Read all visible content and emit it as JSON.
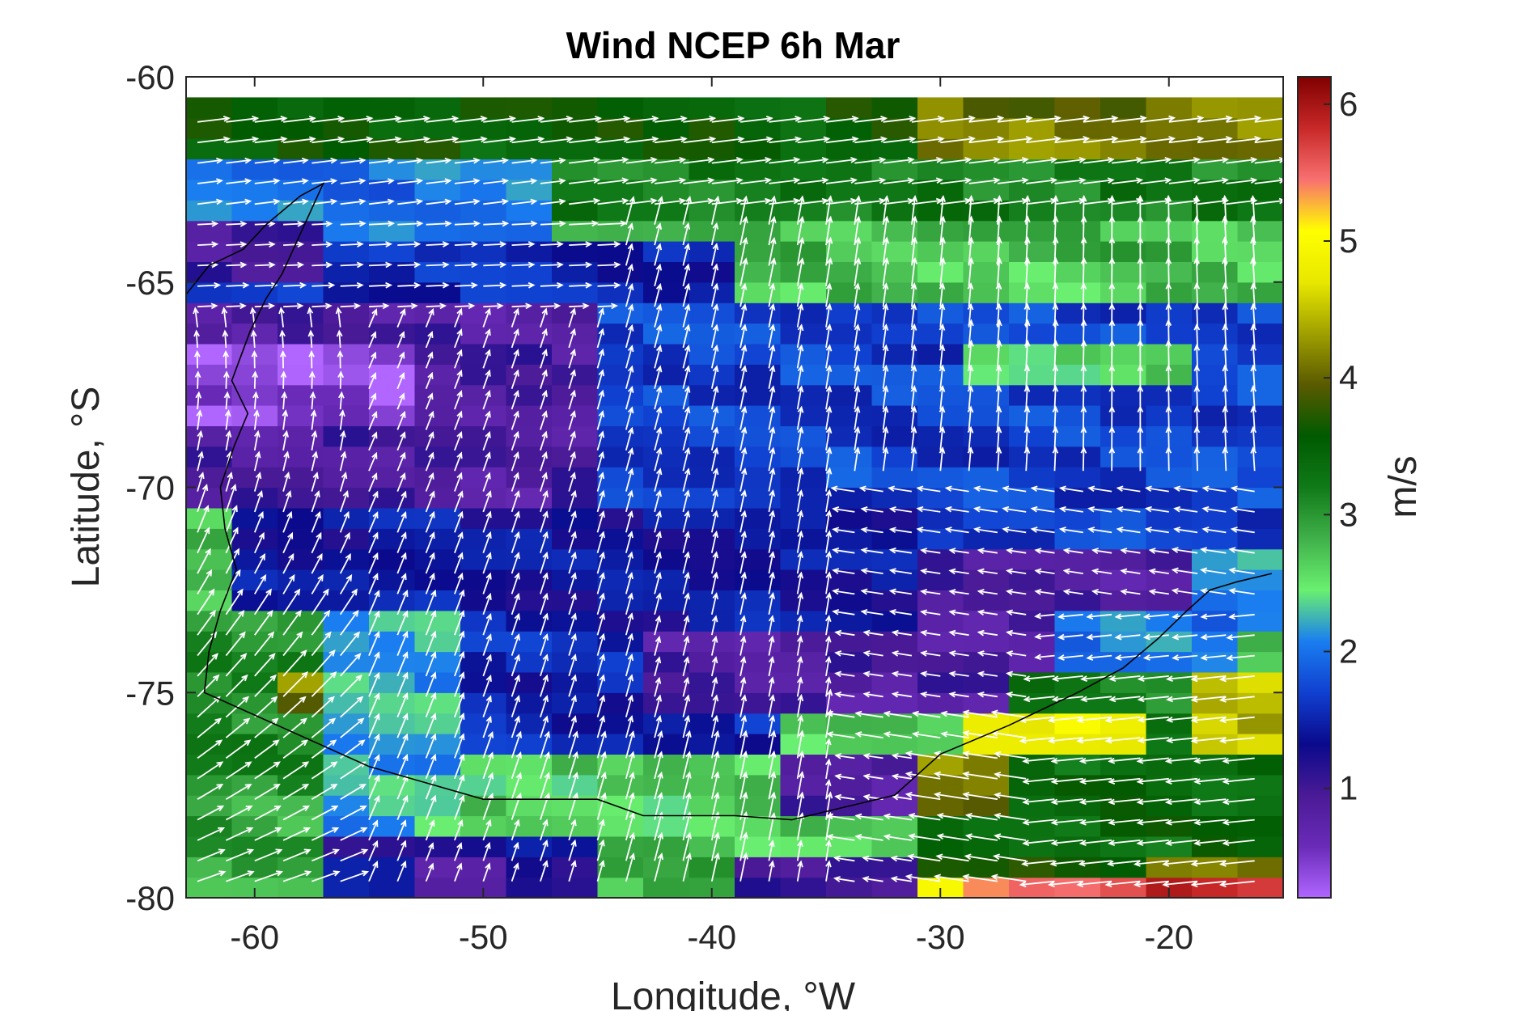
{
  "chart_data": {
    "type": "heatmap",
    "title": "Wind NCEP 6h Mar",
    "xlabel": "Longitude, °W",
    "ylabel": "Latitude, °S",
    "colorbar_label": "m/s",
    "xlim": [
      -63,
      -15
    ],
    "ylim": [
      -80,
      -60
    ],
    "xticks": [
      -60,
      -50,
      -40,
      -30,
      -20
    ],
    "xtick_labels": [
      "-60",
      "-50",
      "-40",
      "-30",
      "-20"
    ],
    "yticks": [
      -60,
      -65,
      -70,
      -75,
      -80
    ],
    "ytick_labels": [
      "-60",
      "-65",
      "-70",
      "-75",
      "-80"
    ],
    "colorbar_range": [
      0.2,
      6.2
    ],
    "colorbar_ticks": [
      1,
      2,
      3,
      4,
      5,
      6
    ],
    "colorbar_tick_labels": [
      "1",
      "2",
      "3",
      "4",
      "5",
      "6"
    ],
    "colormap": [
      "#b066ff",
      "#6a2bb8",
      "#4a1a96",
      "#0a0a8c",
      "#1040d0",
      "#1a7ef0",
      "#6af070",
      "#40b04a",
      "#107a18",
      "#005a00",
      "#5a5a00",
      "#a0a000",
      "#e8e800",
      "#ffff00",
      "#f87070",
      "#c82828",
      "#800000"
    ],
    "grid": false,
    "vector_color": "#ffffff",
    "speed_regions": [
      {
        "lon": [
          -63,
          -31
        ],
        "lat": [
          -62,
          -60.5
        ],
        "speed": 3.5
      },
      {
        "lon": [
          -31,
          -15
        ],
        "lat": [
          -62,
          -60.5
        ],
        "speed": 4.1
      },
      {
        "lon": [
          -55,
          -15
        ],
        "lat": [
          -63.5,
          -62
        ],
        "speed": 3.2
      },
      {
        "lon": [
          -47,
          -15
        ],
        "lat": [
          -65,
          -63.5
        ],
        "speed": 2.8
      },
      {
        "lon": [
          -63,
          -47
        ],
        "lat": [
          -64,
          -62
        ],
        "speed": 2.0
      },
      {
        "lon": [
          -63,
          -39
        ],
        "lat": [
          -65.5,
          -64
        ],
        "speed": 1.5
      },
      {
        "lon": [
          -63,
          -57
        ],
        "lat": [
          -65,
          -63.5
        ],
        "speed": 1.0
      },
      {
        "lon": [
          -39,
          -15
        ],
        "lat": [
          -66.5,
          -64.5
        ],
        "speed": 2.7
      },
      {
        "lon": [
          -63,
          -44
        ],
        "lat": [
          -70.5,
          -65.5
        ],
        "speed": 0.9
      },
      {
        "lon": [
          -63,
          -52
        ],
        "lat": [
          -68.5,
          -66.5
        ],
        "speed": 0.4
      },
      {
        "lon": [
          -44,
          -15
        ],
        "lat": [
          -72,
          -65.5
        ],
        "speed": 1.7
      },
      {
        "lon": [
          -29,
          -19
        ],
        "lat": [
          -67.5,
          -66.5
        ],
        "speed": 2.6
      },
      {
        "lon": [
          -63,
          -61
        ],
        "lat": [
          -71.5,
          -70.5
        ],
        "speed": 2.8
      },
      {
        "lon": [
          -60,
          -30
        ],
        "lat": [
          -73.5,
          -70.5
        ],
        "speed": 1.4
      },
      {
        "lon": [
          -30,
          -19
        ],
        "lat": [
          -73.5,
          -71.5
        ],
        "speed": 0.9
      },
      {
        "lon": [
          -19,
          -15
        ],
        "lat": [
          -73.5,
          -71.5
        ],
        "speed": 2.1
      },
      {
        "lon": [
          -63,
          -56
        ],
        "lat": [
          -77.5,
          -73
        ],
        "speed": 3.1
      },
      {
        "lon": [
          -59,
          -57
        ],
        "lat": [
          -75.5,
          -74.5
        ],
        "speed": 4.1
      },
      {
        "lon": [
          -56,
          -50
        ],
        "lat": [
          -79,
          -73
        ],
        "speed": 2.2
      },
      {
        "lon": [
          -50,
          -36
        ],
        "lat": [
          -76.5,
          -73.5
        ],
        "speed": 1.5
      },
      {
        "lon": [
          -43,
          -24
        ],
        "lat": [
          -75.5,
          -73.5
        ],
        "speed": 0.9
      },
      {
        "lon": [
          -24,
          -17
        ],
        "lat": [
          -74.5,
          -73
        ],
        "speed": 2.0
      },
      {
        "lon": [
          -26,
          -15
        ],
        "lat": [
          -76.5,
          -74.5
        ],
        "speed": 3.2
      },
      {
        "lon": [
          -18,
          -15
        ],
        "lat": [
          -76.5,
          -74.5
        ],
        "speed": 4.5
      },
      {
        "lon": [
          -28,
          -20
        ],
        "lat": [
          -76.5,
          -75.5
        ],
        "speed": 4.8
      },
      {
        "lon": [
          -36,
          -31
        ],
        "lat": [
          -78,
          -76.5
        ],
        "speed": 0.9
      },
      {
        "lon": [
          -31,
          -15
        ],
        "lat": [
          -79,
          -76.5
        ],
        "speed": 3.4
      },
      {
        "lon": [
          -31,
          -27
        ],
        "lat": [
          -78,
          -76.5
        ],
        "speed": 4.1
      },
      {
        "lon": [
          -63,
          -56
        ],
        "lat": [
          -80,
          -77.5
        ],
        "speed": 2.9
      },
      {
        "lon": [
          -56,
          -44
        ],
        "lat": [
          -80,
          -78.5
        ],
        "speed": 1.3
      },
      {
        "lon": [
          -53,
          -48
        ],
        "lat": [
          -80,
          -79
        ],
        "speed": 0.8
      },
      {
        "lon": [
          -44,
          -38
        ],
        "lat": [
          -80,
          -78.5
        ],
        "speed": 2.8
      },
      {
        "lon": [
          -38,
          -31
        ],
        "lat": [
          -80,
          -79
        ],
        "speed": 1.1
      },
      {
        "lon": [
          -31,
          -15
        ],
        "lat": [
          -80,
          -79
        ],
        "speed": 3.6
      },
      {
        "lon": [
          -20,
          -15
        ],
        "lat": [
          -80,
          -79
        ],
        "speed": 4.3
      },
      {
        "lon": [
          -31,
          -15
        ],
        "lat": [
          -80,
          -79.5
        ],
        "speed": 5.0
      },
      {
        "lon": [
          -28,
          -21
        ],
        "lat": [
          -80,
          -79.5
        ],
        "speed": 5.4
      },
      {
        "lon": [
          -20,
          -15
        ],
        "lat": [
          -80,
          -79.5
        ],
        "speed": 5.9
      }
    ],
    "coastline": [
      [
        -63,
        -65.3
      ],
      [
        -62,
        -64.6
      ],
      [
        -60.5,
        -64.2
      ],
      [
        -59.5,
        -63.6
      ],
      [
        -58,
        -62.9
      ],
      [
        -57,
        -62.6
      ],
      [
        -58.8,
        -64.8
      ],
      [
        -59.5,
        -65.4
      ],
      [
        -60.2,
        -66.2
      ],
      [
        -61,
        -67.4
      ],
      [
        -60.3,
        -68.2
      ],
      [
        -60.9,
        -69.0
      ],
      [
        -61.5,
        -70.0
      ],
      [
        -61.3,
        -71.0
      ],
      [
        -60.8,
        -72.0
      ],
      [
        -61.5,
        -73.0
      ],
      [
        -62.0,
        -74.0
      ],
      [
        -62.2,
        -75.0
      ],
      [
        -59.0,
        -75.8
      ],
      [
        -55.0,
        -76.8
      ],
      [
        -50.0,
        -77.6
      ],
      [
        -45.0,
        -77.6
      ],
      [
        -43.0,
        -78.0
      ],
      [
        -39.0,
        -78.0
      ],
      [
        -36.5,
        -78.1
      ],
      [
        -35.0,
        -77.9
      ],
      [
        -32.0,
        -77.5
      ],
      [
        -30.0,
        -76.5
      ],
      [
        -27.0,
        -75.8
      ],
      [
        -24.0,
        -75.0
      ],
      [
        -22.0,
        -74.4
      ],
      [
        -20.5,
        -73.7
      ],
      [
        -19.2,
        -73.0
      ],
      [
        -18.2,
        -72.5
      ],
      [
        -17.0,
        -72.3
      ],
      [
        -15.5,
        -72.1
      ]
    ]
  }
}
